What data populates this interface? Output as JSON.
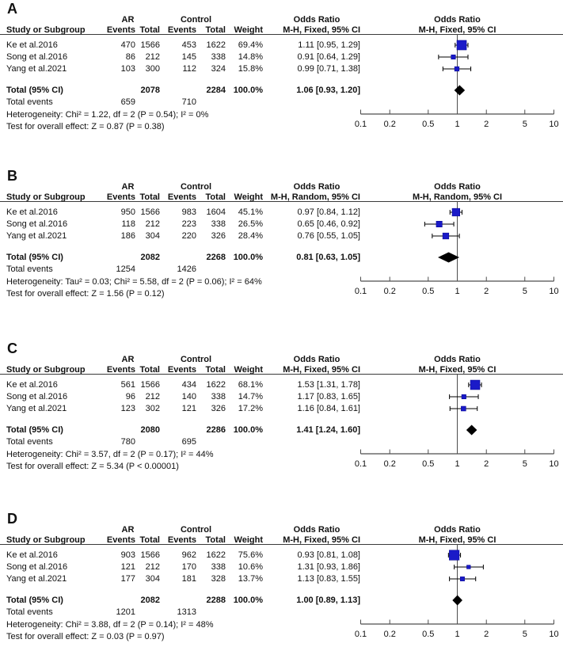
{
  "figure": {
    "background": "#ffffff",
    "square_color": "#1a1ac8",
    "square_border": "#00008c",
    "diamond_color": "#000000",
    "ci_line_color": "#000000",
    "axis_color": "#4d4d4d",
    "text_color": "#111111"
  },
  "columns": {
    "study": "Study or Subgroup",
    "events": "Events",
    "total": "Total",
    "weight": "Weight"
  },
  "chart_data": {
    "type": "forest",
    "effect_measure": "Odds Ratio",
    "scale": "log10",
    "axis_min": 0.1,
    "axis_max": 10,
    "axis_ticks": [
      0.1,
      0.2,
      0.5,
      1,
      2,
      5,
      10
    ],
    "axis_tick_labels": [
      "0.1",
      "0.2",
      "0.5",
      "1",
      "2",
      "5",
      "10"
    ],
    "panels": [
      {
        "letter": "A",
        "group1_label": "AR",
        "group2_label": "Control",
        "or_label": "Odds Ratio",
        "method_label": "M-H, Fixed, 95% CI",
        "studies": [
          {
            "name": "Ke et al.2016",
            "events1": "470",
            "total1": "1566",
            "events2": "453",
            "total2": "1622",
            "weight": "69.4%",
            "weight_pct": 69.4,
            "or_text": "1.11 [0.95, 1.29]",
            "or": 1.11,
            "ci_low": 0.95,
            "ci_high": 1.29
          },
          {
            "name": "Song et al.2016",
            "events1": "86",
            "total1": "212",
            "events2": "145",
            "total2": "338",
            "weight": "14.8%",
            "weight_pct": 14.8,
            "or_text": "0.91 [0.64, 1.29]",
            "or": 0.91,
            "ci_low": 0.64,
            "ci_high": 1.29
          },
          {
            "name": "Yang et al.2021",
            "events1": "103",
            "total1": "300",
            "events2": "112",
            "total2": "324",
            "weight": "15.8%",
            "weight_pct": 15.8,
            "or_text": "0.99 [0.71, 1.38]",
            "or": 0.99,
            "ci_low": 0.71,
            "ci_high": 1.38
          }
        ],
        "total": {
          "label": "Total (95% CI)",
          "total1": "2078",
          "total2": "2284",
          "weight": "100.0%",
          "or_text": "1.06 [0.93, 1.20]",
          "or": 1.06,
          "ci_low": 0.93,
          "ci_high": 1.2
        },
        "total_events": {
          "label": "Total events",
          "events1": "659",
          "events2": "710"
        },
        "heterogeneity": "Heterogeneity: Chi² = 1.22, df = 2 (P = 0.54); I² = 0%",
        "overall_test": "Test for overall effect: Z = 0.87 (P = 0.38)"
      },
      {
        "letter": "B",
        "group1_label": "AR",
        "group2_label": "Control",
        "or_label": "Odds Ratio",
        "method_label": "M-H, Random, 95% CI",
        "studies": [
          {
            "name": "Ke et al.2016",
            "events1": "950",
            "total1": "1566",
            "events2": "983",
            "total2": "1604",
            "weight": "45.1%",
            "weight_pct": 45.1,
            "or_text": "0.97 [0.84, 1.12]",
            "or": 0.97,
            "ci_low": 0.84,
            "ci_high": 1.12
          },
          {
            "name": "Song et al.2016",
            "events1": "118",
            "total1": "212",
            "events2": "223",
            "total2": "338",
            "weight": "26.5%",
            "weight_pct": 26.5,
            "or_text": "0.65 [0.46, 0.92]",
            "or": 0.65,
            "ci_low": 0.46,
            "ci_high": 0.92
          },
          {
            "name": "Yang et al.2021",
            "events1": "186",
            "total1": "304",
            "events2": "220",
            "total2": "326",
            "weight": "28.4%",
            "weight_pct": 28.4,
            "or_text": "0.76 [0.55, 1.05]",
            "or": 0.76,
            "ci_low": 0.55,
            "ci_high": 1.05
          }
        ],
        "total": {
          "label": "Total (95% CI)",
          "total1": "2082",
          "total2": "2268",
          "weight": "100.0%",
          "or_text": "0.81 [0.63, 1.05]",
          "or": 0.81,
          "ci_low": 0.63,
          "ci_high": 1.05
        },
        "total_events": {
          "label": "Total events",
          "events1": "1254",
          "events2": "1426"
        },
        "heterogeneity": "Heterogeneity: Tau² = 0.03; Chi² = 5.58, df = 2 (P = 0.06); I² = 64%",
        "overall_test": "Test for overall effect: Z = 1.56 (P = 0.12)"
      },
      {
        "letter": "C",
        "group1_label": "AR",
        "group2_label": "Control",
        "or_label": "Odds Ratio",
        "method_label": "M-H, Fixed, 95% CI",
        "studies": [
          {
            "name": "Ke et al.2016",
            "events1": "561",
            "total1": "1566",
            "events2": "434",
            "total2": "1622",
            "weight": "68.1%",
            "weight_pct": 68.1,
            "or_text": "1.53 [1.31, 1.78]",
            "or": 1.53,
            "ci_low": 1.31,
            "ci_high": 1.78
          },
          {
            "name": "Song et al.2016",
            "events1": "96",
            "total1": "212",
            "events2": "140",
            "total2": "338",
            "weight": "14.7%",
            "weight_pct": 14.7,
            "or_text": "1.17 [0.83, 1.65]",
            "or": 1.17,
            "ci_low": 0.83,
            "ci_high": 1.65
          },
          {
            "name": "Yang et al.2021",
            "events1": "123",
            "total1": "302",
            "events2": "121",
            "total2": "326",
            "weight": "17.2%",
            "weight_pct": 17.2,
            "or_text": "1.16 [0.84, 1.61]",
            "or": 1.16,
            "ci_low": 0.84,
            "ci_high": 1.61
          }
        ],
        "total": {
          "label": "Total (95% CI)",
          "total1": "2080",
          "total2": "2286",
          "weight": "100.0%",
          "or_text": "1.41 [1.24, 1.60]",
          "or": 1.41,
          "ci_low": 1.24,
          "ci_high": 1.6
        },
        "total_events": {
          "label": "Total events",
          "events1": "780",
          "events2": "695"
        },
        "heterogeneity": "Heterogeneity: Chi² = 3.57, df = 2 (P = 0.17); I² = 44%",
        "overall_test": "Test for overall effect: Z = 5.34 (P < 0.00001)"
      },
      {
        "letter": "D",
        "group1_label": "AR",
        "group2_label": "Control",
        "or_label": "Odds Ratio",
        "method_label": "M-H, Fixed, 95% CI",
        "studies": [
          {
            "name": "Ke et al.2016",
            "events1": "903",
            "total1": "1566",
            "events2": "962",
            "total2": "1622",
            "weight": "75.6%",
            "weight_pct": 75.6,
            "or_text": "0.93 [0.81, 1.08]",
            "or": 0.93,
            "ci_low": 0.81,
            "ci_high": 1.08
          },
          {
            "name": "Song et al.2016",
            "events1": "121",
            "total1": "212",
            "events2": "170",
            "total2": "338",
            "weight": "10.6%",
            "weight_pct": 10.6,
            "or_text": "1.31 [0.93, 1.86]",
            "or": 1.31,
            "ci_low": 0.93,
            "ci_high": 1.86
          },
          {
            "name": "Yang et al.2021",
            "events1": "177",
            "total1": "304",
            "events2": "181",
            "total2": "328",
            "weight": "13.7%",
            "weight_pct": 13.7,
            "or_text": "1.13 [0.83, 1.55]",
            "or": 1.13,
            "ci_low": 0.83,
            "ci_high": 1.55
          }
        ],
        "total": {
          "label": "Total (95% CI)",
          "total1": "2082",
          "total2": "2288",
          "weight": "100.0%",
          "or_text": "1.00 [0.89, 1.13]",
          "or": 1.0,
          "ci_low": 0.89,
          "ci_high": 1.13
        },
        "total_events": {
          "label": "Total events",
          "events1": "1201",
          "events2": "1313"
        },
        "heterogeneity": "Heterogeneity: Chi² = 3.88, df = 2 (P = 0.14); I² = 48%",
        "overall_test": "Test for overall effect: Z = 0.03 (P = 0.97)"
      }
    ]
  }
}
